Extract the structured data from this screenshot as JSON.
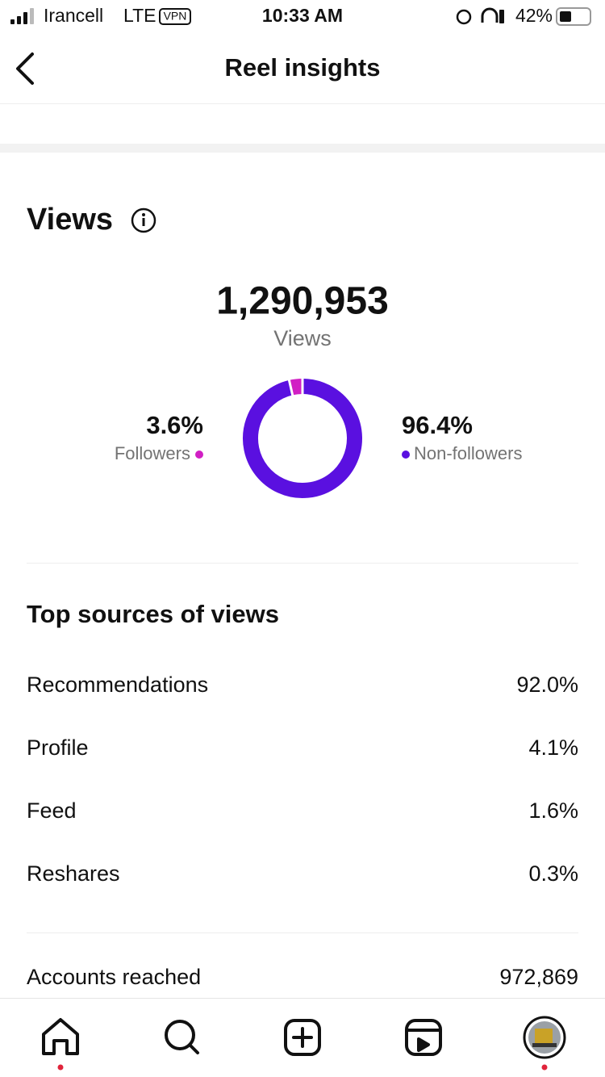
{
  "status_bar": {
    "carrier": "Irancell",
    "network": "LTE",
    "vpn": "VPN",
    "time": "10:33 AM",
    "battery": "42%"
  },
  "header": {
    "title": "Reel insights"
  },
  "views": {
    "title": "Views",
    "total": "1,290,953",
    "total_label": "Views",
    "donut": {
      "type": "pie",
      "series": [
        {
          "name": "Followers",
          "color": "#d11fc4",
          "value": 3.6,
          "value_label": "3.6%"
        },
        {
          "name": "Non-followers",
          "color": "#5a10e0",
          "value": 96.4,
          "value_label": "96.4%"
        }
      ]
    }
  },
  "sources": {
    "title": "Top sources of views",
    "rows": [
      [
        "Recommendations",
        "92.0%"
      ],
      [
        "Profile",
        "4.1%"
      ],
      [
        "Feed",
        "1.6%"
      ],
      [
        "Reshares",
        "0.3%"
      ]
    ]
  },
  "reach": {
    "label": "Accounts reached",
    "value": "972,869"
  }
}
